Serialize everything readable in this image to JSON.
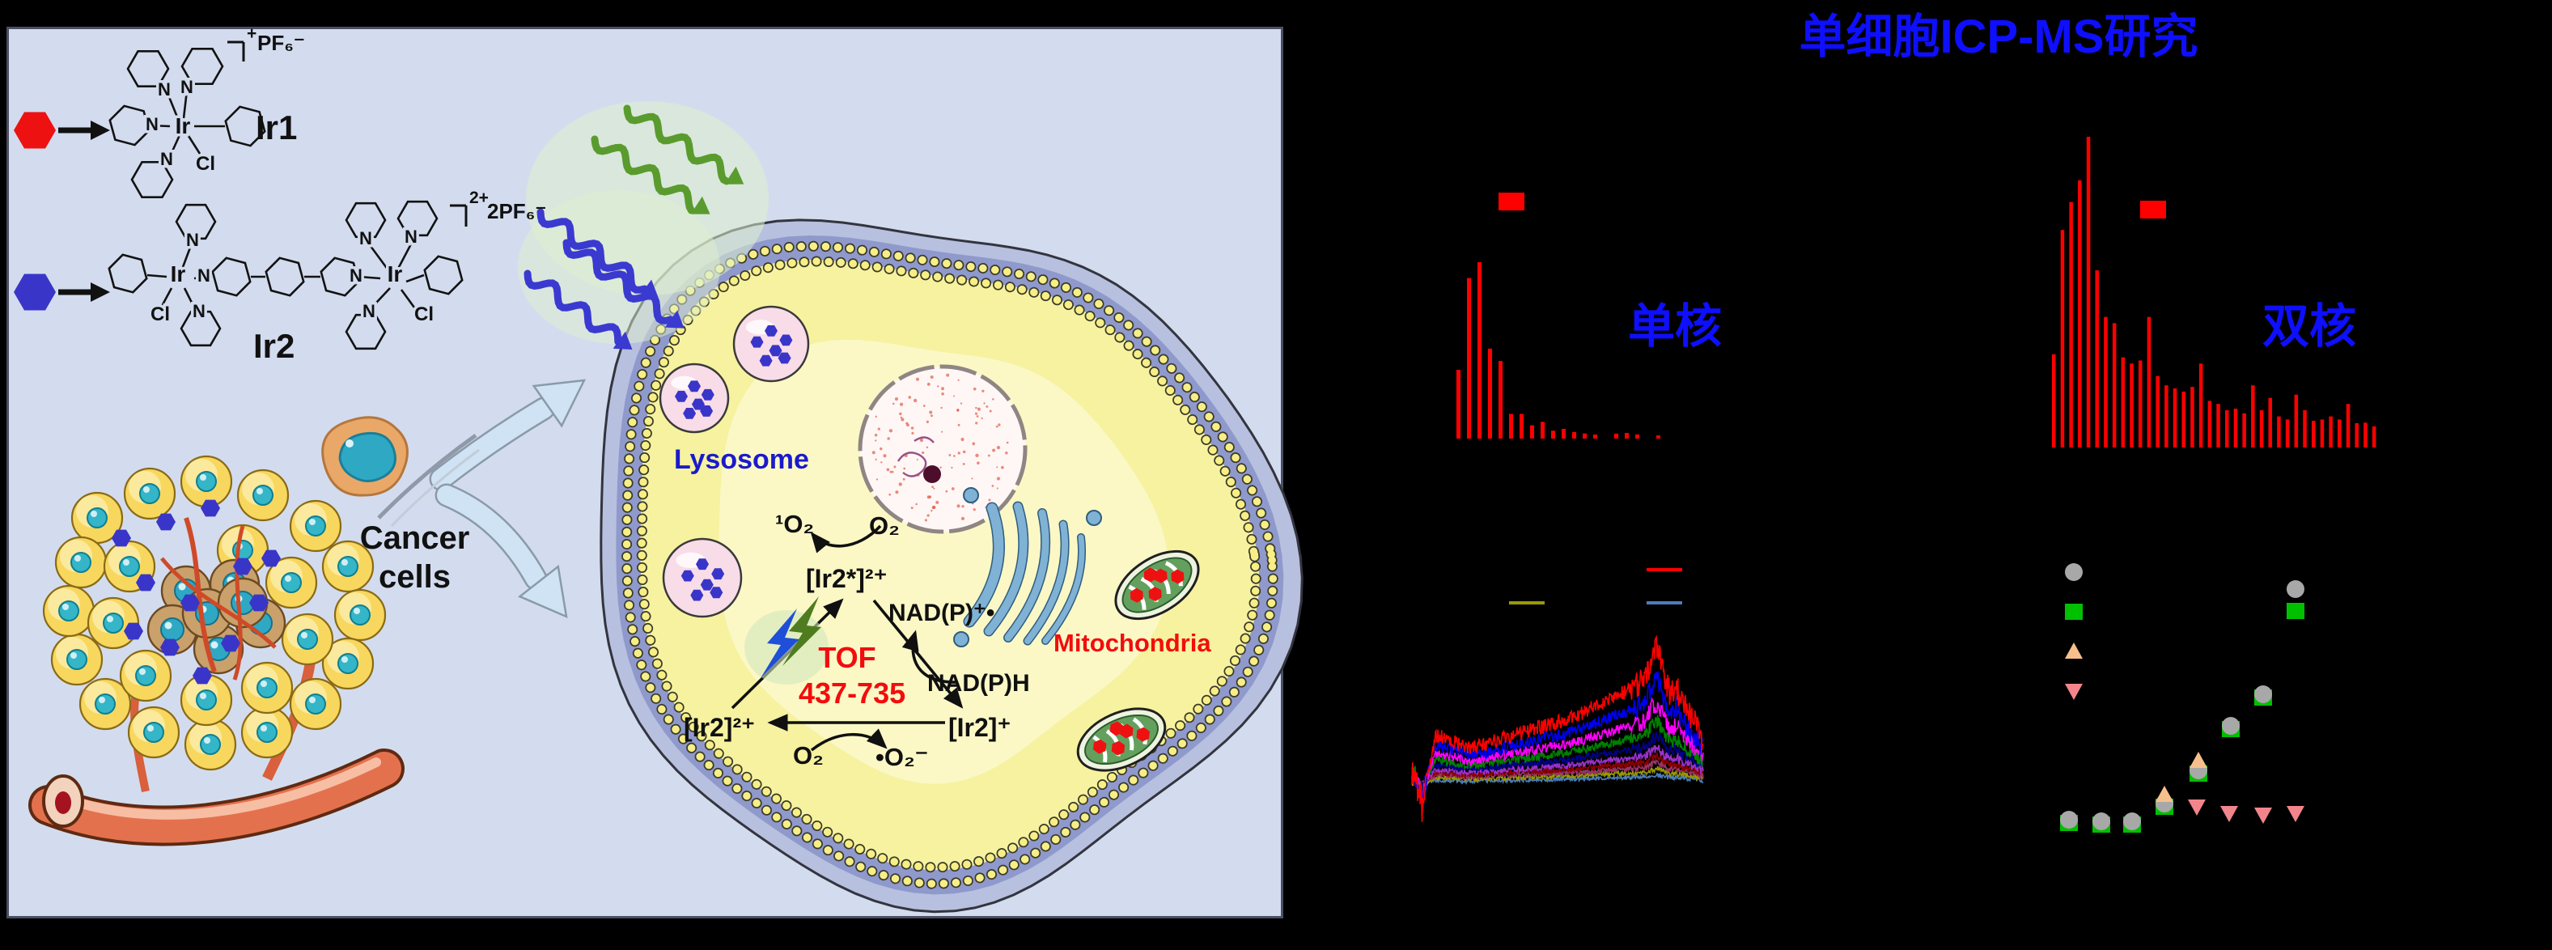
{
  "left_panel": {
    "compound1": {
      "name": "Ir1",
      "charge": "+",
      "counterion": "PF₆⁻",
      "marker_color": "#ee1111"
    },
    "compound2": {
      "name": "Ir2",
      "charge": "2+",
      "counterion": "2PF₆⁻",
      "marker_color": "#3a35c9"
    },
    "atoms": {
      "metal": "Ir",
      "chloride": "Cl",
      "nitrogen": "N"
    },
    "cancer_cells": {
      "line1": "Cancer",
      "line2": "cells"
    },
    "organelles": {
      "lysosome": "Lysosome",
      "mitochondria": "Mitochondria"
    },
    "organelle_label_colors": {
      "lysosome": "#1a1acc",
      "mitochondria": "#f20d0d"
    },
    "cycle": {
      "excited": "[Ir2*]²⁺",
      "ground": "[Ir2]²⁺",
      "reduced": "[Ir2]⁺",
      "tof_label": "TOF",
      "tof_range": "437-735",
      "tof_color": "#f20d0d",
      "nad_oxidized": "NAD(P)⁺•",
      "nad_reduced": "NAD(P)H",
      "singlet_oxygen": "¹O₂",
      "oxygen_top": "O₂",
      "oxygen_bottom": "O₂",
      "superoxide": "•O₂⁻"
    }
  },
  "right_panel": {
    "title": "单细胞ICP-MS研究",
    "title_color": "#0f0fff",
    "label_color": "#0f0fff"
  },
  "chart_data": [
    {
      "id": "hist_mono",
      "type": "bar",
      "title": "单核",
      "bar_color": "#ff0000",
      "legend_color": "#ff0000",
      "values": [
        0.39,
        0.91,
        1.0,
        0.51,
        0.44,
        0.14,
        0.14,
        0.075,
        0.095,
        0.045,
        0.055,
        0.037,
        0.029,
        0.023,
        0,
        0.028,
        0.032,
        0.023,
        0,
        0.018
      ]
    },
    {
      "id": "hist_di",
      "type": "bar",
      "title": "双核",
      "bar_color": "#ff0000",
      "legend_color": "#ff0000",
      "values": [
        0.3,
        0.7,
        0.79,
        0.86,
        1.0,
        0.57,
        0.42,
        0.4,
        0.29,
        0.27,
        0.28,
        0.42,
        0.23,
        0.2,
        0.19,
        0.18,
        0.195,
        0.27,
        0.15,
        0.14,
        0.12,
        0.125,
        0.11,
        0.2,
        0.12,
        0.16,
        0.1,
        0.09,
        0.17,
        0.12,
        0.086,
        0.09,
        0.1,
        0.09,
        0.14,
        0.078,
        0.08,
        0.068
      ]
    },
    {
      "id": "uptake_traces",
      "type": "line",
      "legend_colors": [
        "#999900",
        "#ff0000",
        "#4a7ebb"
      ],
      "series": [
        {
          "color": "#4a7ebb",
          "scale": 0.06
        },
        {
          "color": "#999900",
          "scale": 0.1
        },
        {
          "color": "#993366",
          "scale": 0.14
        },
        {
          "color": "#8b0000",
          "scale": 0.18
        },
        {
          "color": "#9932cc",
          "scale": 0.24
        },
        {
          "color": "#00008b",
          "scale": 0.33
        },
        {
          "color": "#008000",
          "scale": 0.44
        },
        {
          "color": "#ff00ff",
          "scale": 0.58
        },
        {
          "color": "#0000ee",
          "scale": 0.76
        },
        {
          "color": "#ff0000",
          "scale": 1.0
        }
      ]
    },
    {
      "id": "dose_scatter",
      "type": "scatter",
      "legend": [
        {
          "shape": "circle",
          "color": "#a8a8a8"
        },
        {
          "shape": "square",
          "color": "#00c000"
        },
        {
          "shape": "triangle-up",
          "color": "#f6c08d"
        },
        {
          "shape": "triangle-down",
          "color": "#f2858b"
        }
      ],
      "series": [
        {
          "shape": "square",
          "color": "#00c000",
          "points": [
            [
              67,
              397
            ],
            [
              107,
              399
            ],
            [
              145,
              399
            ],
            [
              185,
              377
            ],
            [
              227,
              336
            ],
            [
              267,
              281
            ],
            [
              307,
              242
            ],
            [
              347,
              135
            ]
          ]
        },
        {
          "shape": "circle",
          "color": "#a8a8a8",
          "points": [
            [
              67,
              393
            ],
            [
              107,
              395
            ],
            [
              145,
              395
            ],
            [
              185,
              373
            ],
            [
              227,
              332
            ],
            [
              267,
              277
            ],
            [
              307,
              238
            ],
            [
              347,
              108
            ]
          ]
        },
        {
          "shape": "triangle-up",
          "color": "#f6c08d",
          "points": [
            [
              185,
              362
            ],
            [
              227,
              320
            ]
          ]
        },
        {
          "shape": "triangle-down",
          "color": "#f2858b",
          "points": [
            [
              225,
              377
            ],
            [
              265,
              385
            ],
            [
              307,
              387
            ],
            [
              347,
              385
            ]
          ]
        }
      ]
    }
  ]
}
